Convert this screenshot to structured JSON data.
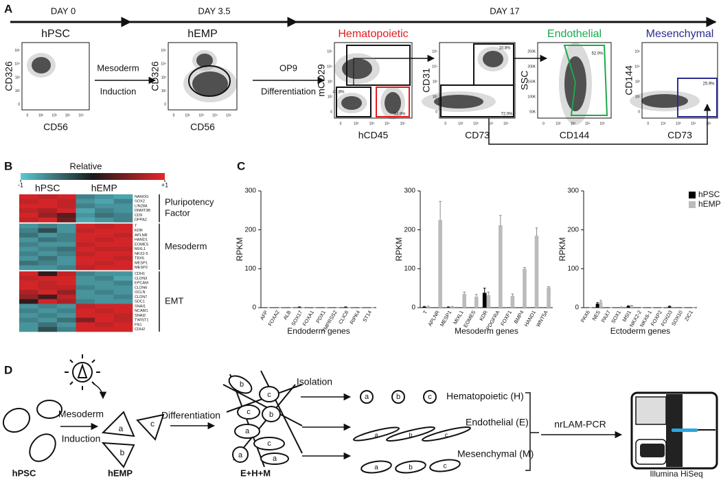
{
  "panel_labels": [
    "A",
    "B",
    "C",
    "D"
  ],
  "panel_a": {
    "timeline": [
      "DAY 0",
      "DAY 3.5",
      "DAY 17"
    ],
    "steps": [
      [
        "Mesoderm",
        "Induction"
      ],
      [
        "OP9",
        "Differentiation"
      ]
    ],
    "log_ticks": [
      "0",
      "10²",
      "10³",
      "10⁴",
      "10⁵"
    ],
    "ssc_ticks": [
      "50K",
      "100K",
      "150K",
      "200K",
      "250K"
    ],
    "plots": [
      {
        "title": "hPSC",
        "xlabel": "CD56",
        "ylabel": "CD326"
      },
      {
        "title": "hEMP",
        "xlabel": "CD56",
        "ylabel": "CD326"
      },
      {
        "title": "Hematopoietic",
        "xlabel": "hCD45",
        "ylabel": "mCD29",
        "gates": [
          "43.8%",
          "33.8%"
        ]
      },
      {
        "xlabel": "CD73",
        "ylabel": "CD31",
        "gates": [
          "10.8%",
          "72.0%"
        ]
      },
      {
        "title": "Endothelial",
        "xlabel": "CD144",
        "ylabel": "SSC",
        "gates": [
          "52.0%"
        ]
      },
      {
        "title": "Mesenchymal",
        "xlabel": "CD73",
        "ylabel": "CD144",
        "gates": [
          "25.9%"
        ]
      }
    ]
  },
  "chart_data": [
    {
      "type": "heatmap",
      "colorbar_label": "Relative",
      "colorbar_ticks": [
        {
          "value": -1,
          "label": "-1"
        },
        {
          "value": 1,
          "label": "+1"
        }
      ],
      "clim": [
        -1,
        1
      ],
      "colormap": [
        "#5bc8d4",
        "#1a1a1a",
        "#e8262a"
      ],
      "column_groups": [
        "hPSC",
        "hEMP"
      ],
      "row_groups": [
        {
          "name": [
            "Pluripotency",
            "Factor"
          ],
          "rows": [
            "NANOG",
            "SOX2",
            "LIN28A",
            "DNMT3B",
            "CD9",
            "DPPA2"
          ],
          "values": [
            [
              0.9,
              0.8,
              0.9,
              -0.6,
              -0.7,
              -0.8
            ],
            [
              0.8,
              0.9,
              0.8,
              -0.7,
              -0.8,
              -0.6
            ],
            [
              0.9,
              0.9,
              0.8,
              -0.6,
              -0.7,
              -0.7
            ],
            [
              0.8,
              0.7,
              0.9,
              -0.8,
              -0.6,
              -0.7
            ],
            [
              0.9,
              0.6,
              0.3,
              -0.7,
              -0.5,
              -0.6
            ],
            [
              0.8,
              0.9,
              0.4,
              -0.8,
              -0.7,
              -0.6
            ]
          ]
        },
        {
          "name": [
            "Mesoderm"
          ],
          "rows": [
            "T",
            "KDR",
            "APLNR",
            "HAND1",
            "EOMES",
            "MIXL1",
            "NKX2-5",
            "TBX6",
            "MESP1",
            "MESP2"
          ],
          "values": [
            [
              -0.7,
              -0.6,
              -0.7,
              0.9,
              0.8,
              0.9
            ],
            [
              -0.6,
              -0.3,
              -0.7,
              0.8,
              0.9,
              0.9
            ],
            [
              -0.5,
              -0.7,
              -0.6,
              0.9,
              0.9,
              0.8
            ],
            [
              -0.7,
              -0.5,
              -0.6,
              0.9,
              0.8,
              0.9
            ],
            [
              -0.6,
              -0.7,
              -0.7,
              0.8,
              0.9,
              0.9
            ],
            [
              -0.7,
              -0.6,
              -0.5,
              0.9,
              0.8,
              0.8
            ],
            [
              -0.6,
              -0.7,
              -0.6,
              0.8,
              0.9,
              0.9
            ],
            [
              -0.7,
              -0.5,
              -0.7,
              0.9,
              0.9,
              0.8
            ],
            [
              -0.5,
              -0.6,
              -0.7,
              0.9,
              0.8,
              0.9
            ],
            [
              -0.7,
              -0.7,
              -0.6,
              0.8,
              0.9,
              0.9
            ]
          ]
        },
        {
          "name": [
            "EMT"
          ],
          "rows": [
            "CDH1",
            "CLDN3",
            "EPCAM",
            "CLDN6",
            "OCLN",
            "CLDN7",
            "SDC1",
            "SNAI1",
            "NCAM1",
            "SNAI2",
            "TWIST1",
            "FN1",
            "CDH2"
          ],
          "values": [
            [
              0.9,
              0.1,
              0.8,
              -0.6,
              -0.7,
              -0.7
            ],
            [
              0.8,
              0.9,
              0.9,
              -0.7,
              -0.6,
              -0.8
            ],
            [
              0.9,
              0.8,
              0.9,
              -0.7,
              -0.7,
              -0.6
            ],
            [
              0.9,
              0.8,
              0.8,
              -0.6,
              -0.7,
              -0.7
            ],
            [
              0.7,
              0.9,
              0.6,
              -0.7,
              -0.6,
              -0.7
            ],
            [
              0.6,
              0.2,
              0.8,
              -0.7,
              -0.7,
              -0.6
            ],
            [
              0.1,
              0.9,
              0.7,
              -0.6,
              -0.7,
              -0.7
            ],
            [
              -0.7,
              -0.6,
              -0.7,
              0.8,
              0.9,
              0.9
            ],
            [
              -0.6,
              -0.7,
              -0.6,
              0.9,
              0.8,
              0.9
            ],
            [
              -0.7,
              -0.6,
              -0.7,
              0.9,
              0.9,
              0.8
            ],
            [
              -0.6,
              -0.7,
              -0.5,
              0.5,
              0.9,
              0.8
            ],
            [
              -0.7,
              -0.5,
              -0.7,
              0.9,
              0.8,
              0.9
            ],
            [
              -0.7,
              -0.3,
              -0.6,
              0.9,
              0.9,
              0.9
            ]
          ]
        }
      ]
    },
    {
      "type": "bar",
      "xlabel": "Endoderm genes",
      "ylabel": "RPKM",
      "ylim": [
        0,
        300
      ],
      "yticks": [
        0,
        100,
        200,
        300
      ],
      "categories": [
        "AFP",
        "FOXA2",
        "ALB",
        "SOX17",
        "FOXA1",
        "PDX1",
        "TMPRSS2",
        "CLIC6",
        "RIPK4",
        "ST14"
      ],
      "series": [
        {
          "color": "#000000",
          "values": [
            0,
            0,
            0,
            1,
            0,
            0,
            0,
            1,
            0,
            0
          ],
          "errors": [
            0,
            0,
            0,
            1,
            0,
            0,
            0,
            1,
            0,
            0
          ]
        },
        {
          "color": "#bbbbbb",
          "values": [
            0,
            0,
            0,
            0,
            0,
            0,
            0,
            0,
            0,
            0
          ],
          "errors": [
            0,
            0,
            0,
            0,
            0,
            0,
            0,
            0,
            0,
            0
          ]
        }
      ]
    },
    {
      "type": "bar",
      "xlabel": "Mesoderm genes",
      "ylabel": "RPKM",
      "ylim": [
        0,
        300
      ],
      "yticks": [
        0,
        100,
        200,
        300
      ],
      "categories": [
        "T",
        "APLNR",
        "MESP1",
        "MIXL1",
        "EOMES",
        "KDR",
        "PDGFRA",
        "FOXF1",
        "BMP4",
        "HAND1",
        "WNT5A"
      ],
      "series": [
        {
          "color": "#000000",
          "values": [
            2,
            0,
            1,
            0,
            0,
            38,
            0,
            0,
            0,
            0,
            0
          ],
          "errors": [
            1,
            0,
            1,
            0,
            0,
            12,
            0,
            0,
            0,
            0,
            0
          ]
        },
        {
          "color": "#bbbbbb",
          "values": [
            3,
            225,
            2,
            35,
            28,
            32,
            212,
            30,
            100,
            185,
            52
          ],
          "errors": [
            1,
            48,
            1,
            5,
            6,
            8,
            25,
            5,
            3,
            20,
            2
          ]
        }
      ]
    },
    {
      "type": "bar",
      "xlabel": "Ectoderm genes",
      "ylabel": "RPKM",
      "ylim": [
        0,
        300
      ],
      "yticks": [
        0,
        100,
        200,
        300
      ],
      "legend": "upper right",
      "categories": [
        "PAX6",
        "NES",
        "PAX7",
        "SOX1",
        "MSI1",
        "NKX2-2",
        "NKX6-1",
        "FOXP2",
        "FOXD3",
        "SOX10",
        "ZIC1"
      ],
      "series": [
        {
          "name": "hPSC",
          "color": "#000000",
          "values": [
            0,
            10,
            0,
            0,
            4,
            0,
            0,
            0,
            3,
            0,
            0
          ],
          "errors": [
            0,
            3,
            0,
            0,
            1,
            0,
            0,
            0,
            1,
            0,
            0
          ]
        },
        {
          "name": "hEMP",
          "color": "#bbbbbb",
          "values": [
            0,
            15,
            0,
            2,
            5,
            0,
            0,
            0,
            1,
            0,
            0
          ],
          "errors": [
            0,
            4,
            0,
            0,
            1,
            0,
            0,
            0,
            0,
            0,
            0
          ]
        }
      ]
    }
  ],
  "panel_d": {
    "steps": [
      "Mesoderm",
      "Induction",
      "Differentiation",
      "Isolation",
      "nrLAM-PCR"
    ],
    "lineages": [
      "Hematopoietic (H)",
      "Endothelial (E)",
      "Mesenchymal (M)"
    ],
    "stages": [
      "hPSC",
      "hEMP",
      "E+H+M",
      "Illumina HiSeq"
    ],
    "clones": [
      "a",
      "b",
      "c"
    ]
  }
}
